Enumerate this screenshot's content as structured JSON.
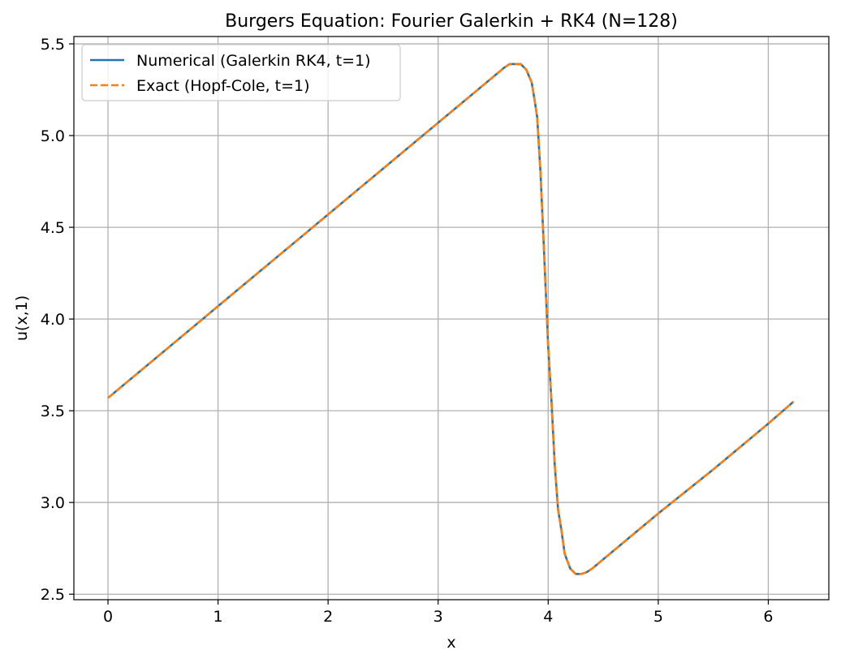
{
  "chart_data": {
    "type": "line",
    "title": "Burgers Equation: Fourier Galerkin + RK4 (N=128)",
    "xlabel": "x",
    "ylabel": "u(x,1)",
    "xlim": [
      -0.31,
      6.55
    ],
    "ylim": [
      2.47,
      5.54
    ],
    "xticks": [
      0,
      1,
      2,
      3,
      4,
      5,
      6
    ],
    "xtick_labels": [
      "0",
      "1",
      "2",
      "3",
      "4",
      "5",
      "6"
    ],
    "yticks": [
      2.5,
      3.0,
      3.5,
      4.0,
      4.5,
      5.0,
      5.5
    ],
    "ytick_labels": [
      "2.5",
      "3.0",
      "3.5",
      "4.0",
      "4.5",
      "5.0",
      "5.5"
    ],
    "grid": true,
    "legend_position": "upper-left",
    "series": [
      {
        "name": "Numerical (Galerkin RK4, t=1)",
        "color": "#1f77b4",
        "style": "solid",
        "x": [
          0,
          0.5,
          1.0,
          1.5,
          2.0,
          2.5,
          3.0,
          3.3,
          3.5,
          3.6,
          3.65,
          3.7,
          3.75,
          3.8,
          3.85,
          3.88,
          3.9,
          3.93,
          3.96,
          4.0,
          4.03,
          4.06,
          4.09,
          4.12,
          4.15,
          4.2,
          4.25,
          4.3,
          4.35,
          4.4,
          4.5,
          5.0,
          5.5,
          6.0,
          6.23
        ],
        "y": [
          3.57,
          3.82,
          4.07,
          4.32,
          4.57,
          4.82,
          5.07,
          5.22,
          5.32,
          5.37,
          5.39,
          5.39,
          5.39,
          5.36,
          5.29,
          5.18,
          5.1,
          4.8,
          4.4,
          3.85,
          3.55,
          3.2,
          2.96,
          2.85,
          2.72,
          2.64,
          2.61,
          2.61,
          2.62,
          2.64,
          2.69,
          2.94,
          3.18,
          3.43,
          3.55
        ]
      },
      {
        "name": "Exact (Hopf-Cole, t=1)",
        "color": "#ff7f0e",
        "style": "dashed",
        "x": [
          0,
          0.5,
          1.0,
          1.5,
          2.0,
          2.5,
          3.0,
          3.3,
          3.5,
          3.6,
          3.65,
          3.7,
          3.75,
          3.8,
          3.85,
          3.88,
          3.9,
          3.93,
          3.96,
          4.0,
          4.03,
          4.06,
          4.09,
          4.12,
          4.15,
          4.2,
          4.25,
          4.3,
          4.35,
          4.4,
          4.5,
          5.0,
          5.5,
          6.0,
          6.23
        ],
        "y": [
          3.57,
          3.82,
          4.07,
          4.32,
          4.57,
          4.82,
          5.07,
          5.22,
          5.32,
          5.37,
          5.39,
          5.39,
          5.39,
          5.36,
          5.29,
          5.18,
          5.1,
          4.8,
          4.4,
          3.85,
          3.55,
          3.2,
          2.96,
          2.85,
          2.72,
          2.64,
          2.61,
          2.61,
          2.62,
          2.64,
          2.69,
          2.94,
          3.18,
          3.43,
          3.55
        ]
      }
    ]
  }
}
